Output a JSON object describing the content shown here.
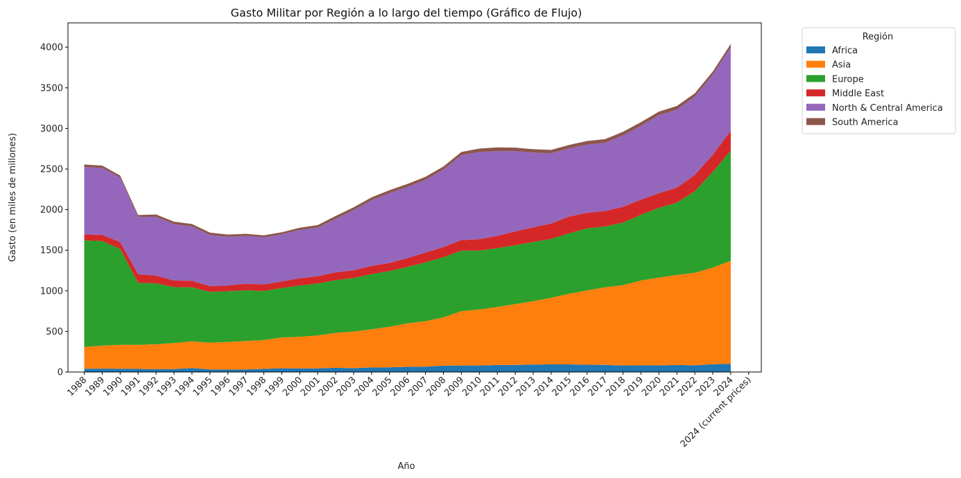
{
  "chart_data": {
    "type": "area",
    "title": "Gasto Militar por Región a lo largo del tiempo (Gráfico de Flujo)",
    "xlabel": "Año",
    "ylabel": "Gasto (en miles de millones)",
    "ylim": [
      0,
      4300
    ],
    "yticks": [
      0,
      500,
      1000,
      1500,
      2000,
      2500,
      3000,
      3500,
      4000
    ],
    "grid": false,
    "legend_title": "Región",
    "legend_placement": "outside-top-right",
    "categories": [
      "1988",
      "1989",
      "1990",
      "1991",
      "1992",
      "1993",
      "1994",
      "1995",
      "1996",
      "1997",
      "1998",
      "1999",
      "2000",
      "2001",
      "2002",
      "2003",
      "2004",
      "2005",
      "2006",
      "2007",
      "2008",
      "2009",
      "2010",
      "2011",
      "2012",
      "2013",
      "2014",
      "2015",
      "2016",
      "2017",
      "2018",
      "2019",
      "2020",
      "2021",
      "2022",
      "2023",
      "2024",
      "2024 (current prices)"
    ],
    "series": [
      {
        "name": "Africa",
        "color": "#1f77b4",
        "values": [
          40,
          42,
          40,
          38,
          34,
          36,
          48,
          32,
          30,
          32,
          38,
          46,
          44,
          45,
          52,
          48,
          56,
          58,
          64,
          66,
          78,
          80,
          80,
          86,
          86,
          92,
          94,
          94,
          90,
          88,
          80,
          82,
          82,
          86,
          82,
          96,
          100,
          null
        ]
      },
      {
        "name": "Asia",
        "color": "#ff7f0e",
        "values": [
          270,
          282,
          295,
          296,
          308,
          320,
          330,
          330,
          340,
          350,
          355,
          380,
          390,
          405,
          430,
          450,
          470,
          500,
          535,
          560,
          595,
          670,
          690,
          715,
          750,
          780,
          820,
          870,
          915,
          955,
          990,
          1045,
          1080,
          1110,
          1140,
          1190,
          1270,
          null
        ]
      },
      {
        "name": "Europe",
        "color": "#2ca02c",
        "values": [
          1310,
          1290,
          1180,
          765,
          750,
          690,
          665,
          625,
          625,
          625,
          605,
          610,
          630,
          640,
          650,
          660,
          680,
          685,
          695,
          725,
          740,
          745,
          725,
          725,
          725,
          730,
          725,
          745,
          765,
          750,
          770,
          810,
          860,
          890,
          1005,
          1180,
          1355,
          null
        ]
      },
      {
        "name": "Middle East",
        "color": "#d62728",
        "values": [
          75,
          75,
          85,
          105,
          95,
          80,
          80,
          70,
          70,
          80,
          80,
          80,
          90,
          90,
          95,
          95,
          100,
          100,
          110,
          120,
          125,
          130,
          140,
          150,
          170,
          180,
          190,
          205,
          190,
          190,
          195,
          185,
          180,
          185,
          200,
          210,
          245,
          null
        ]
      },
      {
        "name": "North & Central America",
        "color": "#9467bd",
        "values": [
          830,
          825,
          795,
          705,
          725,
          695,
          670,
          630,
          600,
          590,
          580,
          580,
          595,
          600,
          660,
          740,
          810,
          860,
          875,
          895,
          955,
          1045,
          1075,
          1045,
          990,
          920,
          865,
          840,
          840,
          840,
          880,
          910,
          960,
          960,
          965,
          985,
          1030,
          null
        ]
      },
      {
        "name": "South America",
        "color": "#8c564b",
        "values": [
          30,
          28,
          25,
          25,
          28,
          30,
          30,
          30,
          27,
          25,
          25,
          25,
          28,
          30,
          35,
          35,
          35,
          37,
          37,
          38,
          38,
          40,
          42,
          45,
          42,
          42,
          42,
          42,
          45,
          45,
          43,
          45,
          45,
          45,
          40,
          40,
          40,
          null
        ]
      }
    ]
  }
}
